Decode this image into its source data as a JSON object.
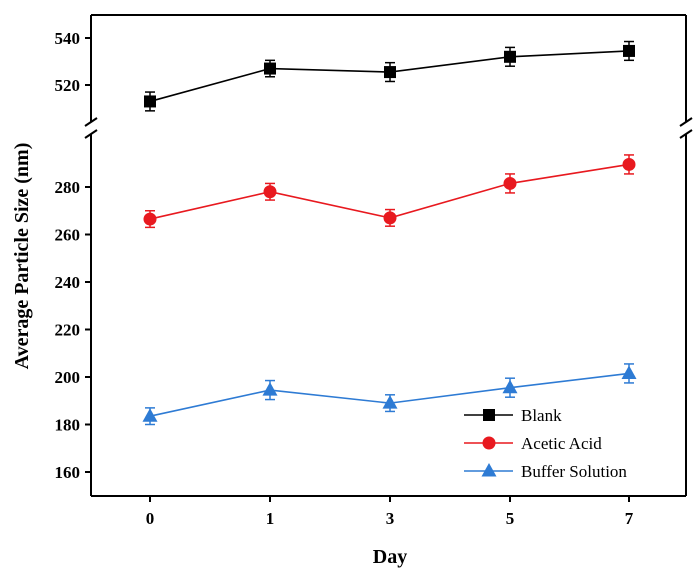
{
  "chart_data": {
    "type": "line",
    "title": "",
    "xlabel": "Day",
    "ylabel": "Average Particle Size (nm)",
    "categories": [
      "0",
      "1",
      "3",
      "5",
      "7"
    ],
    "y_axis_break": {
      "lower_range": [
        150,
        292
      ],
      "upper_range": [
        500,
        550
      ]
    },
    "yticks_lower": [
      160,
      180,
      200,
      220,
      240,
      260,
      280
    ],
    "yticks_upper": [
      520,
      540
    ],
    "legend_position": "bottom-right",
    "grid": false,
    "series": [
      {
        "name": "Blank",
        "color": "#000000",
        "marker": "square",
        "values": [
          513,
          527,
          525.5,
          532,
          534.5
        ],
        "errors": [
          4,
          3.5,
          4,
          4,
          4
        ]
      },
      {
        "name": "Acetic Acid",
        "color": "#e8191f",
        "marker": "circle",
        "values": [
          266.5,
          278,
          267,
          281.5,
          289.5
        ],
        "errors": [
          3.5,
          3.5,
          3.5,
          4,
          4
        ]
      },
      {
        "name": "Buffer Solution",
        "color": "#2e7bd4",
        "marker": "triangle",
        "values": [
          183.5,
          194.5,
          189,
          195.5,
          201.5
        ],
        "errors": [
          3.5,
          4,
          3.5,
          4,
          4
        ]
      }
    ]
  }
}
